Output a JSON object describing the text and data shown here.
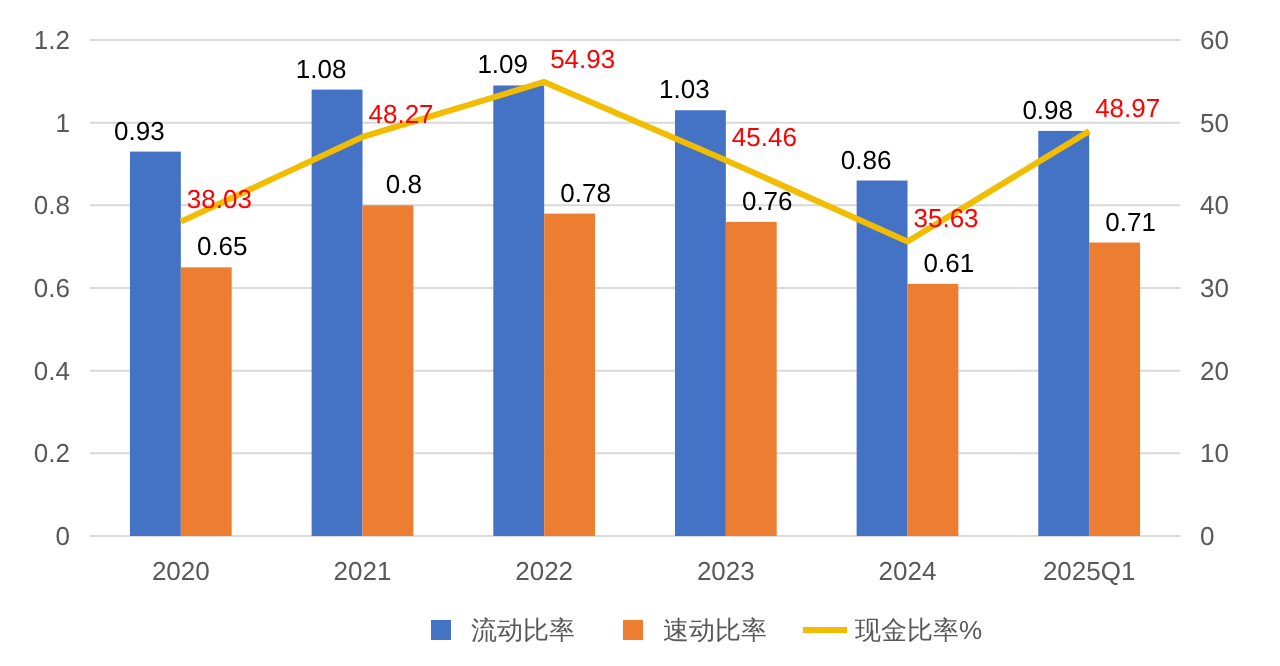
{
  "chart_data": {
    "type": "bar",
    "categories": [
      "2020",
      "2021",
      "2022",
      "2023",
      "2024",
      "2025Q1"
    ],
    "series": [
      {
        "name": "流动比率",
        "color": "#4472c4",
        "values": [
          0.93,
          1.08,
          1.09,
          1.03,
          0.86,
          0.98
        ]
      },
      {
        "name": "速动比率",
        "color": "#ed7d31",
        "values": [
          0.65,
          0.8,
          0.78,
          0.76,
          0.61,
          0.71
        ]
      },
      {
        "name": "现金比率%",
        "type": "line",
        "axis": "y2",
        "color": "#f2bc00",
        "values": [
          38.03,
          48.27,
          54.93,
          45.46,
          35.63,
          48.97
        ]
      }
    ],
    "ylim": [
      0,
      1.2
    ],
    "yticks": [
      0,
      0.2,
      0.4,
      0.6,
      0.8,
      1,
      1.2
    ],
    "y2lim": [
      0,
      60
    ],
    "y2ticks": [
      0,
      10,
      20,
      30,
      40,
      50,
      60
    ],
    "grid": "y",
    "legend": "bottom",
    "data_labels": true,
    "marker": "none",
    "line_style": "solid"
  }
}
